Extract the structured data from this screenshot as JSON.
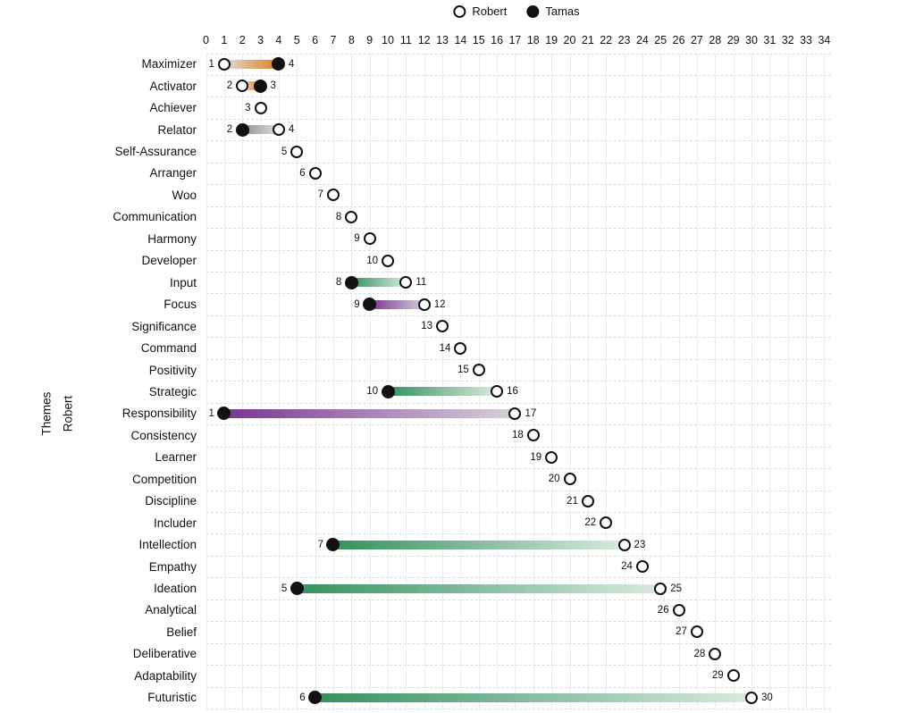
{
  "chart_data": {
    "type": "dumbbell",
    "title": "",
    "legend_position": "top-center",
    "series": [
      {
        "name": "Robert",
        "marker": "open-circle"
      },
      {
        "name": "Tamas",
        "marker": "filled-circle"
      }
    ],
    "x_axis": {
      "min": 0,
      "max": 34,
      "ticks": [
        0,
        1,
        2,
        3,
        4,
        5,
        6,
        7,
        8,
        9,
        10,
        11,
        12,
        13,
        14,
        15,
        16,
        17,
        18,
        19,
        20,
        21,
        22,
        23,
        24,
        25,
        26,
        27,
        28,
        29,
        30,
        31,
        32,
        33,
        34
      ]
    },
    "y_axis_title": {
      "line1": "Themes",
      "line2": "Robert"
    },
    "grid": {
      "vertical": "on-solid",
      "horizontal": "on-dashed"
    },
    "colors": {
      "marker": "#111111",
      "orange": {
        "full": "#e1801f",
        "light": "#dedbd7"
      },
      "gray": {
        "full": "#8e8e8e",
        "light": "#dfdfdf"
      },
      "green": {
        "full": "#35915d",
        "light": "#d8eadf"
      },
      "purple": {
        "full": "#7a3494",
        "light": "#d6d0d9"
      }
    },
    "rows": [
      {
        "theme": "Maximizer",
        "robert": 1,
        "tamas": 4,
        "domain": "orange"
      },
      {
        "theme": "Activator",
        "robert": 2,
        "tamas": 3,
        "domain": "orange"
      },
      {
        "theme": "Achiever",
        "robert": 3,
        "tamas": null,
        "domain": null
      },
      {
        "theme": "Relator",
        "robert": 4,
        "tamas": 2,
        "domain": "gray"
      },
      {
        "theme": "Self-Assurance",
        "robert": 5,
        "tamas": null,
        "domain": null
      },
      {
        "theme": "Arranger",
        "robert": 6,
        "tamas": null,
        "domain": null
      },
      {
        "theme": "Woo",
        "robert": 7,
        "tamas": null,
        "domain": null
      },
      {
        "theme": "Communication",
        "robert": 8,
        "tamas": null,
        "domain": null
      },
      {
        "theme": "Harmony",
        "robert": 9,
        "tamas": null,
        "domain": null
      },
      {
        "theme": "Developer",
        "robert": 10,
        "tamas": null,
        "domain": null
      },
      {
        "theme": "Input",
        "robert": 11,
        "tamas": 8,
        "domain": "green"
      },
      {
        "theme": "Focus",
        "robert": 12,
        "tamas": 9,
        "domain": "purple"
      },
      {
        "theme": "Significance",
        "robert": 13,
        "tamas": null,
        "domain": null
      },
      {
        "theme": "Command",
        "robert": 14,
        "tamas": null,
        "domain": null
      },
      {
        "theme": "Positivity",
        "robert": 15,
        "tamas": null,
        "domain": null
      },
      {
        "theme": "Strategic",
        "robert": 16,
        "tamas": 10,
        "domain": "green"
      },
      {
        "theme": "Responsibility",
        "robert": 17,
        "tamas": 1,
        "domain": "purple"
      },
      {
        "theme": "Consistency",
        "robert": 18,
        "tamas": null,
        "domain": null
      },
      {
        "theme": "Learner",
        "robert": 19,
        "tamas": null,
        "domain": null
      },
      {
        "theme": "Competition",
        "robert": 20,
        "tamas": null,
        "domain": null
      },
      {
        "theme": "Discipline",
        "robert": 21,
        "tamas": null,
        "domain": null
      },
      {
        "theme": "Includer",
        "robert": 22,
        "tamas": null,
        "domain": null
      },
      {
        "theme": "Intellection",
        "robert": 23,
        "tamas": 7,
        "domain": "green"
      },
      {
        "theme": "Empathy",
        "robert": 24,
        "tamas": null,
        "domain": null
      },
      {
        "theme": "Ideation",
        "robert": 25,
        "tamas": 5,
        "domain": "green"
      },
      {
        "theme": "Analytical",
        "robert": 26,
        "tamas": null,
        "domain": null
      },
      {
        "theme": "Belief",
        "robert": 27,
        "tamas": null,
        "domain": null
      },
      {
        "theme": "Deliberative",
        "robert": 28,
        "tamas": null,
        "domain": null
      },
      {
        "theme": "Adaptability",
        "robert": 29,
        "tamas": null,
        "domain": null
      },
      {
        "theme": "Futuristic",
        "robert": 30,
        "tamas": 6,
        "domain": "green"
      }
    ]
  }
}
